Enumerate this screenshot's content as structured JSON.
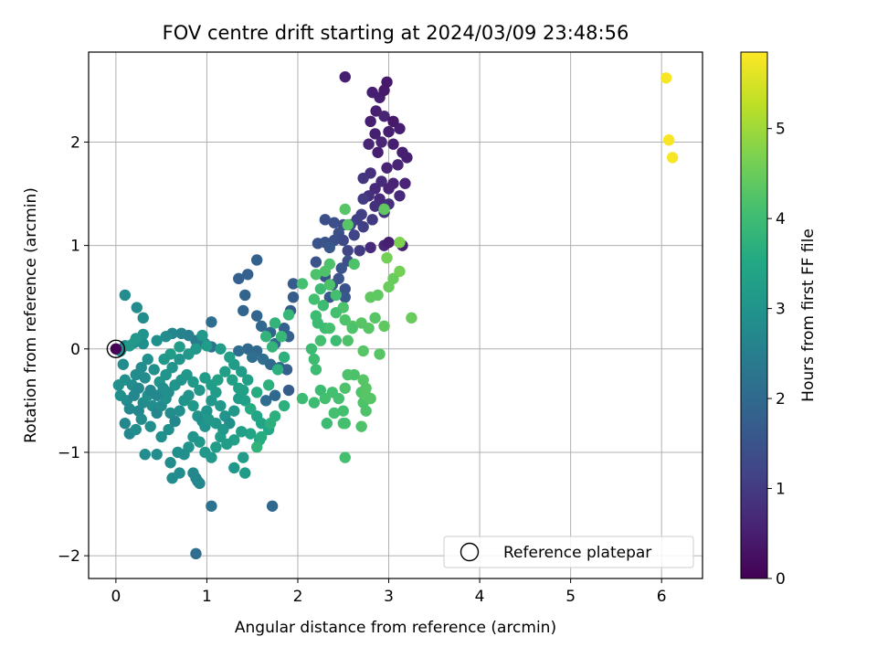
{
  "chart_data": {
    "type": "scatter",
    "title": "FOV centre drift starting at 2024/03/09 23:48:56",
    "xlabel": "Angular distance from reference (arcmin)",
    "ylabel": "Rotation from reference (arcmin)",
    "xlim": [
      -0.3,
      6.45
    ],
    "ylim": [
      -2.22,
      2.87
    ],
    "xticks": [
      0,
      1,
      2,
      3,
      4,
      5,
      6
    ],
    "yticks": [
      -2,
      -1,
      0,
      1,
      2
    ],
    "grid": true,
    "legend": {
      "placement": "lower right",
      "entries": [
        "Reference platepar"
      ]
    },
    "colorbar": {
      "label": "Hours from first FF file",
      "range": [
        0,
        5.85
      ],
      "ticks": [
        0,
        1,
        2,
        3,
        4,
        5
      ],
      "colormap": "viridis"
    },
    "reference_point": {
      "x": 0,
      "y": 0
    },
    "points": [
      [
        2.52,
        2.63,
        0.5
      ],
      [
        2.98,
        2.58,
        0.4
      ],
      [
        2.82,
        2.48,
        0.5
      ],
      [
        2.9,
        2.43,
        0.5
      ],
      [
        2.95,
        2.5,
        0.4
      ],
      [
        3.12,
        2.13,
        0.5
      ],
      [
        2.86,
        2.3,
        0.5
      ],
      [
        2.95,
        2.25,
        0.6
      ],
      [
        2.8,
        2.2,
        0.5
      ],
      [
        3.0,
        2.1,
        0.5
      ],
      [
        3.05,
        2.2,
        0.4
      ],
      [
        2.85,
        2.08,
        0.5
      ],
      [
        2.92,
        2.0,
        0.6
      ],
      [
        3.05,
        1.98,
        0.5
      ],
      [
        2.78,
        1.98,
        0.6
      ],
      [
        2.88,
        1.9,
        0.5
      ],
      [
        3.15,
        1.9,
        0.5
      ],
      [
        3.2,
        1.85,
        0.5
      ],
      [
        3.1,
        1.78,
        0.6
      ],
      [
        2.98,
        1.75,
        0.6
      ],
      [
        2.8,
        1.7,
        0.8
      ],
      [
        2.92,
        1.62,
        0.7
      ],
      [
        3.05,
        1.6,
        0.6
      ],
      [
        3.18,
        1.6,
        0.6
      ],
      [
        2.72,
        1.65,
        0.9
      ],
      [
        2.85,
        1.55,
        0.7
      ],
      [
        3.0,
        1.55,
        0.6
      ],
      [
        3.12,
        1.48,
        0.7
      ],
      [
        2.78,
        1.48,
        0.8
      ],
      [
        2.9,
        1.45,
        0.7
      ],
      [
        3.0,
        1.4,
        0.8
      ],
      [
        2.72,
        1.45,
        1.0
      ],
      [
        2.85,
        1.38,
        0.8
      ],
      [
        2.95,
        1.32,
        0.9
      ],
      [
        2.7,
        1.3,
        1.1
      ],
      [
        2.82,
        1.25,
        1.0
      ],
      [
        2.65,
        1.25,
        1.1
      ],
      [
        2.58,
        1.2,
        1.2
      ],
      [
        2.5,
        1.2,
        1.3
      ],
      [
        2.4,
        1.22,
        1.4
      ],
      [
        2.3,
        1.25,
        1.4
      ],
      [
        2.72,
        1.18,
        1.1
      ],
      [
        2.62,
        1.1,
        1.2
      ],
      [
        2.45,
        1.12,
        1.4
      ],
      [
        2.5,
        1.05,
        1.3
      ],
      [
        2.4,
        1.05,
        1.4
      ],
      [
        2.3,
        1.03,
        1.5
      ],
      [
        2.22,
        1.02,
        1.5
      ],
      [
        2.35,
        0.98,
        1.6
      ],
      [
        2.55,
        0.95,
        1.2
      ],
      [
        2.68,
        0.95,
        1.0
      ],
      [
        2.8,
        0.98,
        0.7
      ],
      [
        2.95,
        1.0,
        0.6
      ],
      [
        3.0,
        1.03,
        0.5
      ],
      [
        3.15,
        1.0,
        0.5
      ],
      [
        2.55,
        0.85,
        1.4
      ],
      [
        2.48,
        0.78,
        1.5
      ],
      [
        2.2,
        0.84,
        1.5
      ],
      [
        2.3,
        0.7,
        1.5
      ],
      [
        2.45,
        0.68,
        1.5
      ],
      [
        2.38,
        0.62,
        1.6
      ],
      [
        2.52,
        0.58,
        1.5
      ],
      [
        2.35,
        0.5,
        1.6
      ],
      [
        2.52,
        0.5,
        1.6
      ],
      [
        1.95,
        0.63,
        1.7
      ],
      [
        1.95,
        0.5,
        1.7
      ],
      [
        1.92,
        0.37,
        1.7
      ],
      [
        1.85,
        0.2,
        1.8
      ],
      [
        1.9,
        0.12,
        1.8
      ],
      [
        1.35,
        0.68,
        1.8
      ],
      [
        1.45,
        0.72,
        1.8
      ],
      [
        1.55,
        0.86,
        1.8
      ],
      [
        1.42,
        0.52,
        1.9
      ],
      [
        1.4,
        0.37,
        1.9
      ],
      [
        1.55,
        0.32,
        1.9
      ],
      [
        1.6,
        0.22,
        2.0
      ],
      [
        1.7,
        0.16,
        1.9
      ],
      [
        1.75,
        0.05,
        2.0
      ],
      [
        1.55,
        -0.02,
        2.0
      ],
      [
        1.45,
        0.0,
        2.0
      ],
      [
        1.35,
        -0.02,
        2.1
      ],
      [
        1.5,
        -0.08,
        2.1
      ],
      [
        1.62,
        -0.1,
        2.1
      ],
      [
        1.7,
        -0.15,
        2.0
      ],
      [
        1.8,
        -0.18,
        2.0
      ],
      [
        1.88,
        -0.2,
        1.8
      ],
      [
        1.9,
        -0.4,
        1.7
      ],
      [
        1.75,
        -0.45,
        2.0
      ],
      [
        1.65,
        -0.5,
        2.1
      ],
      [
        1.72,
        -1.52,
        2.0
      ],
      [
        1.05,
        -1.52,
        2.2
      ],
      [
        0.88,
        -1.98,
        2.1
      ],
      [
        1.05,
        0.26,
        2.1
      ],
      [
        1.05,
        0.02,
        2.2
      ],
      [
        0.98,
        0.05,
        2.3
      ],
      [
        0.88,
        0.08,
        2.4
      ],
      [
        0.8,
        0.13,
        2.5
      ],
      [
        0.72,
        0.15,
        2.6
      ],
      [
        0.62,
        0.15,
        2.7
      ],
      [
        0.55,
        0.12,
        2.8
      ],
      [
        0.45,
        0.08,
        2.9
      ],
      [
        0.3,
        0.05,
        2.9
      ],
      [
        0.2,
        0.06,
        2.8
      ],
      [
        0.1,
        0.03,
        2.7
      ],
      [
        0.05,
        -0.02,
        2.8
      ],
      [
        0.08,
        -0.15,
        2.8
      ],
      [
        0.1,
        -0.3,
        2.9
      ],
      [
        0.03,
        -0.35,
        2.9
      ],
      [
        0.05,
        -0.45,
        2.9
      ],
      [
        0.12,
        -0.5,
        2.8
      ],
      [
        0.2,
        -0.45,
        2.7
      ],
      [
        0.15,
        -0.58,
        2.7
      ],
      [
        0.25,
        -0.6,
        2.7
      ],
      [
        0.3,
        -0.52,
        2.8
      ],
      [
        0.35,
        -0.45,
        2.9
      ],
      [
        0.4,
        -0.55,
        2.8
      ],
      [
        0.45,
        -0.62,
        2.7
      ],
      [
        0.5,
        -0.55,
        2.8
      ],
      [
        0.55,
        -0.48,
        2.9
      ],
      [
        0.6,
        -0.62,
        2.8
      ],
      [
        0.65,
        -0.7,
        2.7
      ],
      [
        0.7,
        -0.6,
        2.9
      ],
      [
        0.75,
        -0.5,
        3.0
      ],
      [
        0.8,
        -0.45,
        3.0
      ],
      [
        0.85,
        -0.55,
        3.1
      ],
      [
        0.9,
        -0.65,
        3.0
      ],
      [
        0.95,
        -0.7,
        2.9
      ],
      [
        1.0,
        -0.6,
        3.0
      ],
      [
        1.05,
        -0.5,
        3.1
      ],
      [
        1.1,
        -0.42,
        3.2
      ],
      [
        1.15,
        -0.55,
        3.1
      ],
      [
        1.2,
        -0.65,
        3.0
      ],
      [
        1.25,
        -0.72,
        2.9
      ],
      [
        1.3,
        -0.6,
        3.1
      ],
      [
        1.35,
        -0.48,
        3.2
      ],
      [
        1.4,
        -0.4,
        3.3
      ],
      [
        1.45,
        -0.3,
        3.3
      ],
      [
        1.38,
        -0.22,
        3.2
      ],
      [
        1.3,
        -0.15,
        3.2
      ],
      [
        1.25,
        -0.08,
        3.3
      ],
      [
        1.15,
        0.0,
        3.2
      ],
      [
        1.0,
        0.03,
        3.2
      ],
      [
        0.95,
        0.13,
        3.1
      ],
      [
        0.88,
        0.0,
        3.1
      ],
      [
        0.8,
        -0.05,
        3.1
      ],
      [
        0.7,
        -0.1,
        3.0
      ],
      [
        0.62,
        -0.18,
        3.0
      ],
      [
        0.55,
        -0.25,
        3.0
      ],
      [
        0.48,
        -0.32,
        3.0
      ],
      [
        0.42,
        -0.2,
        2.9
      ],
      [
        0.35,
        -0.1,
        2.9
      ],
      [
        0.28,
        -0.18,
        2.8
      ],
      [
        0.22,
        -0.25,
        2.8
      ],
      [
        0.18,
        -0.35,
        2.8
      ],
      [
        0.25,
        -0.38,
        2.7
      ],
      [
        0.32,
        -0.28,
        2.8
      ],
      [
        0.38,
        -0.4,
        2.7
      ],
      [
        0.45,
        -0.45,
        2.7
      ],
      [
        0.52,
        -0.38,
        2.8
      ],
      [
        0.58,
        -0.42,
        2.9
      ],
      [
        0.65,
        -0.35,
        3.0
      ],
      [
        0.72,
        -0.3,
        3.0
      ],
      [
        0.78,
        -0.25,
        3.1
      ],
      [
        0.85,
        -0.32,
        3.1
      ],
      [
        0.92,
        -0.4,
        3.1
      ],
      [
        0.98,
        -0.28,
        3.2
      ],
      [
        1.05,
        -0.35,
        3.2
      ],
      [
        1.12,
        -0.3,
        3.3
      ],
      [
        1.2,
        -0.22,
        3.3
      ],
      [
        1.28,
        -0.3,
        3.3
      ],
      [
        1.35,
        -0.38,
        3.3
      ],
      [
        1.42,
        -0.5,
        3.3
      ],
      [
        1.48,
        -0.58,
        3.3
      ],
      [
        1.55,
        -0.65,
        3.4
      ],
      [
        1.6,
        -0.72,
        3.4
      ],
      [
        1.68,
        -0.78,
        3.5
      ],
      [
        1.58,
        -0.88,
        3.5
      ],
      [
        1.48,
        -0.82,
        3.4
      ],
      [
        1.38,
        -0.8,
        3.3
      ],
      [
        1.3,
        -0.88,
        3.3
      ],
      [
        1.22,
        -0.92,
        3.2
      ],
      [
        1.15,
        -0.85,
        3.2
      ],
      [
        1.1,
        -0.95,
        3.2
      ],
      [
        1.05,
        -1.05,
        3.1
      ],
      [
        0.98,
        -1.0,
        3.1
      ],
      [
        0.92,
        -0.9,
        3.1
      ],
      [
        0.85,
        -0.85,
        3.0
      ],
      [
        0.8,
        -0.95,
        3.0
      ],
      [
        0.75,
        -1.02,
        2.9
      ],
      [
        0.68,
        -1.0,
        2.9
      ],
      [
        0.6,
        -1.1,
        2.8
      ],
      [
        0.7,
        -1.2,
        2.8
      ],
      [
        0.62,
        -1.25,
        2.8
      ],
      [
        0.85,
        -1.2,
        2.7
      ],
      [
        0.88,
        -1.25,
        2.7
      ],
      [
        0.92,
        -1.3,
        2.7
      ],
      [
        0.9,
        -1.28,
        2.7
      ],
      [
        0.98,
        -0.75,
        3.0
      ],
      [
        1.02,
        -0.68,
        3.1
      ],
      [
        1.1,
        -0.72,
        3.1
      ],
      [
        1.18,
        -0.78,
        3.1
      ],
      [
        0.32,
        -1.02,
        2.8
      ],
      [
        0.45,
        -1.02,
        2.8
      ],
      [
        0.1,
        -0.72,
        2.7
      ],
      [
        0.15,
        -0.82,
        2.7
      ],
      [
        0.22,
        -0.78,
        2.8
      ],
      [
        0.28,
        -0.68,
        2.8
      ],
      [
        0.38,
        -0.75,
        2.9
      ],
      [
        0.5,
        -0.85,
        2.9
      ],
      [
        0.58,
        -0.78,
        2.9
      ],
      [
        0.1,
        0.52,
        2.8
      ],
      [
        0.23,
        0.4,
        2.8
      ],
      [
        0.3,
        0.3,
        2.8
      ],
      [
        0.3,
        0.14,
        3.0
      ],
      [
        0.22,
        0.1,
        3.1
      ],
      [
        0.15,
        0.03,
        3.1
      ],
      [
        0.7,
        0.02,
        3.2
      ],
      [
        0.6,
        -0.05,
        3.2
      ],
      [
        0.53,
        -0.1,
        3.1
      ],
      [
        1.4,
        -1.05,
        3.2
      ],
      [
        1.3,
        -1.15,
        3.1
      ],
      [
        1.42,
        -1.2,
        3.2
      ],
      [
        1.6,
        -0.85,
        3.6
      ],
      [
        1.7,
        -0.72,
        3.7
      ],
      [
        1.75,
        -0.65,
        3.7
      ],
      [
        1.85,
        -0.55,
        3.7
      ],
      [
        1.55,
        -0.95,
        3.8
      ],
      [
        1.48,
        -0.58,
        3.6
      ],
      [
        1.55,
        -0.42,
        3.6
      ],
      [
        1.68,
        -0.35,
        3.7
      ],
      [
        1.78,
        -0.2,
        3.7
      ],
      [
        1.85,
        -0.08,
        3.7
      ],
      [
        1.72,
        0.02,
        3.8
      ],
      [
        1.65,
        0.12,
        3.8
      ],
      [
        1.75,
        0.25,
        3.8
      ],
      [
        1.82,
        0.12,
        3.9
      ],
      [
        1.9,
        0.33,
        3.9
      ],
      [
        2.05,
        -0.48,
        4.0
      ],
      [
        2.18,
        -0.52,
        4.0
      ],
      [
        2.25,
        -0.4,
        4.0
      ],
      [
        2.3,
        -0.48,
        4.1
      ],
      [
        2.38,
        -0.42,
        4.1
      ],
      [
        2.45,
        -0.48,
        4.1
      ],
      [
        2.5,
        -0.6,
        4.1
      ],
      [
        2.4,
        -0.62,
        4.1
      ],
      [
        2.32,
        -0.72,
        4.0
      ],
      [
        2.5,
        -0.72,
        4.2
      ],
      [
        2.7,
        -0.75,
        4.2
      ],
      [
        2.75,
        -0.6,
        4.2
      ],
      [
        2.72,
        -0.52,
        4.2
      ],
      [
        2.8,
        -0.48,
        4.3
      ],
      [
        2.7,
        -0.42,
        4.2
      ],
      [
        2.75,
        -0.38,
        4.3
      ],
      [
        2.72,
        -0.3,
        4.3
      ],
      [
        2.62,
        -0.25,
        4.2
      ],
      [
        2.52,
        -0.38,
        4.2
      ],
      [
        2.55,
        -0.25,
        4.2
      ],
      [
        2.2,
        -0.2,
        4.0
      ],
      [
        2.42,
        0.08,
        4.0
      ],
      [
        2.3,
        0.2,
        4.0
      ],
      [
        2.22,
        0.25,
        4.0
      ],
      [
        2.2,
        0.32,
        4.0
      ],
      [
        2.28,
        0.42,
        4.0
      ],
      [
        2.18,
        0.48,
        4.1
      ],
      [
        2.25,
        0.58,
        4.0
      ],
      [
        2.05,
        0.63,
        4.1
      ],
      [
        2.2,
        0.72,
        4.2
      ],
      [
        2.3,
        0.75,
        4.2
      ],
      [
        2.35,
        0.62,
        4.2
      ],
      [
        2.42,
        0.52,
        4.1
      ],
      [
        2.5,
        0.4,
        4.2
      ],
      [
        2.52,
        0.28,
        4.2
      ],
      [
        2.6,
        0.22,
        4.3
      ],
      [
        2.7,
        0.25,
        4.3
      ],
      [
        2.78,
        0.2,
        4.3
      ],
      [
        2.85,
        0.3,
        4.3
      ],
      [
        2.95,
        0.22,
        4.4
      ],
      [
        2.8,
        0.5,
        4.4
      ],
      [
        2.88,
        0.52,
        4.4
      ],
      [
        3.0,
        0.6,
        4.5
      ],
      [
        3.05,
        0.68,
        4.5
      ],
      [
        3.12,
        0.75,
        4.6
      ],
      [
        3.25,
        0.3,
        4.5
      ],
      [
        3.12,
        1.03,
        4.7
      ],
      [
        2.98,
        0.88,
        4.6
      ],
      [
        2.52,
        1.35,
        4.3
      ],
      [
        2.95,
        1.35,
        4.4
      ],
      [
        2.52,
        -1.05,
        4.1
      ],
      [
        2.52,
        -0.72,
        4.1
      ],
      [
        2.75,
        -0.45,
        4.3
      ],
      [
        2.9,
        -0.05,
        4.3
      ],
      [
        2.72,
        -0.02,
        4.3
      ],
      [
        2.55,
        0.08,
        4.2
      ],
      [
        2.6,
        0.2,
        4.2
      ],
      [
        2.42,
        0.35,
        4.1
      ],
      [
        2.35,
        0.2,
        4.1
      ],
      [
        2.25,
        0.08,
        4.1
      ],
      [
        2.15,
        0.0,
        4.0
      ],
      [
        2.18,
        -0.1,
        4.0
      ],
      [
        2.35,
        0.82,
        4.2
      ],
      [
        2.62,
        0.82,
        4.2
      ],
      [
        2.55,
        1.2,
        4.3
      ],
      [
        6.05,
        2.62,
        5.8
      ],
      [
        6.08,
        2.02,
        5.8
      ],
      [
        6.12,
        1.85,
        5.8
      ],
      [
        0.0,
        0.0,
        0.0
      ]
    ]
  }
}
